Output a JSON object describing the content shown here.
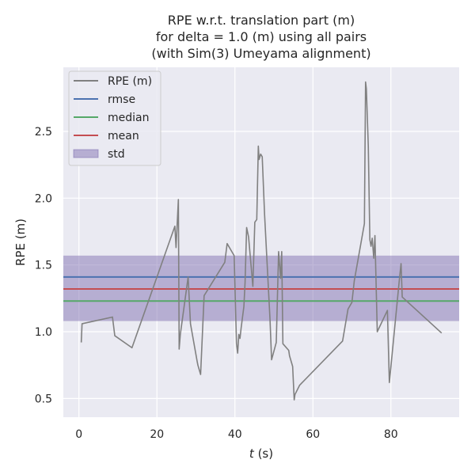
{
  "chart_data": {
    "type": "line",
    "title_lines": [
      "RPE w.r.t. translation part (m)",
      "for delta = 1.0 (m) using all pairs",
      "(with Sim(3) Umeyama alignment)"
    ],
    "xlabel_var": "t",
    "xlabel_unit": " (s)",
    "ylabel": "RPE (m)",
    "xlim": [
      -4,
      97.5
    ],
    "ylim": [
      0.36,
      2.98
    ],
    "x_ticks": [
      0,
      20,
      40,
      60,
      80
    ],
    "y_ticks": [
      0.5,
      1.0,
      1.5,
      2.0,
      2.5
    ],
    "x_tick_labels": [
      "0",
      "20",
      "40",
      "60",
      "80"
    ],
    "y_tick_labels": [
      "0.5",
      "1.0",
      "1.5",
      "2.0",
      "2.5"
    ],
    "grid": true,
    "legend_position": "top-left",
    "legend": [
      {
        "label": "RPE (m)",
        "kind": "line",
        "color": "#808080"
      },
      {
        "label": "rmse",
        "kind": "line",
        "color": "#4c72b0"
      },
      {
        "label": "median",
        "kind": "line",
        "color": "#55a868"
      },
      {
        "label": "mean",
        "kind": "line",
        "color": "#c44e52"
      },
      {
        "label": "std",
        "kind": "patch",
        "color": "#8172b2"
      }
    ],
    "statistics": {
      "rmse": 1.41,
      "median": 1.23,
      "mean": 1.32,
      "std_band": [
        1.08,
        1.57
      ]
    },
    "series": [
      {
        "name": "RPE (m)",
        "color": "#808080",
        "x": [
          0.6,
          0.8,
          8.6,
          9.2,
          13.6,
          24.6,
          24.9,
          25.5,
          25.7,
          26.0,
          28.0,
          28.6,
          30.3,
          30.5,
          31.2,
          32.1,
          37.4,
          38.0,
          39.8,
          40.4,
          40.7,
          41.0,
          41.3,
          41.6,
          42.3,
          42.6,
          43.0,
          43.5,
          44.6,
          45.1,
          45.6,
          46.0,
          46.2,
          46.6,
          47.0,
          47.6,
          49.0,
          49.4,
          50.6,
          51.2,
          51.7,
          52.0,
          52.3,
          53.8,
          54.0,
          54.8,
          55.2,
          55.4,
          56.6,
          67.6,
          69.0,
          70.0,
          70.6,
          73.2,
          73.5,
          73.7,
          74.2,
          74.6,
          74.9,
          75.2,
          75.6,
          75.9,
          76.5,
          79.1,
          79.6,
          82.2,
          82.6,
          82.9,
          93.0
        ],
        "y": [
          0.92,
          1.06,
          1.11,
          0.97,
          0.88,
          1.79,
          1.63,
          1.99,
          0.87,
          0.98,
          1.41,
          1.06,
          0.78,
          0.75,
          0.68,
          1.27,
          1.52,
          1.66,
          1.57,
          0.91,
          0.84,
          0.98,
          0.95,
          1.03,
          1.19,
          1.37,
          1.78,
          1.71,
          1.34,
          1.82,
          1.84,
          2.39,
          2.29,
          2.33,
          2.31,
          1.88,
          1.09,
          0.79,
          0.92,
          1.6,
          1.4,
          1.6,
          0.91,
          0.86,
          0.82,
          0.74,
          0.49,
          0.53,
          0.6,
          0.93,
          1.17,
          1.22,
          1.38,
          1.81,
          2.87,
          2.82,
          2.39,
          1.69,
          1.64,
          1.7,
          1.55,
          1.72,
          1.0,
          1.16,
          0.62,
          1.4,
          1.51,
          1.26,
          0.99
        ]
      }
    ]
  }
}
